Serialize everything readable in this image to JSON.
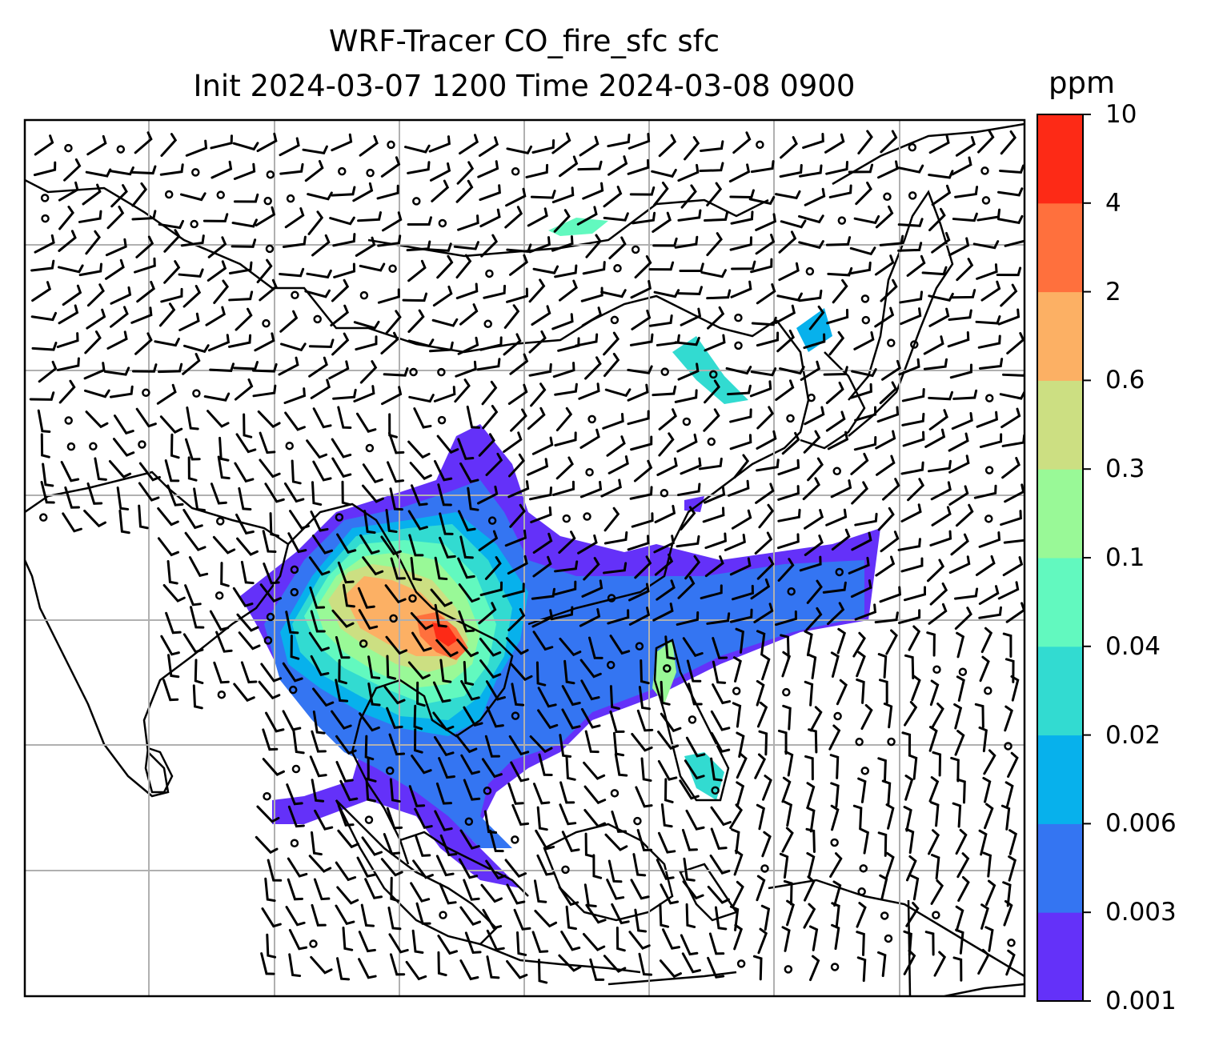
{
  "title": {
    "line1": "WRF-Tracer CO_fire_sfc sfc",
    "line2": "Init 2024-03-07 1200 Time 2024-03-08 0900"
  },
  "colorbar": {
    "unit": "ppm",
    "levels": [
      "0.001",
      "0.003",
      "0.006",
      "0.02",
      "0.04",
      "0.1",
      "0.3",
      "0.6",
      "2",
      "4",
      "10"
    ],
    "colors": [
      "#6431f9",
      "#3475f2",
      "#07b1ec",
      "#32dbd1",
      "#62f9bf",
      "#99f997",
      "#ccdf82",
      "#fcb064",
      "#ff703d",
      "#fd2a16"
    ]
  },
  "map": {
    "gridlines": true,
    "field": "CO_fire_sfc",
    "wind_barbs": true
  }
}
